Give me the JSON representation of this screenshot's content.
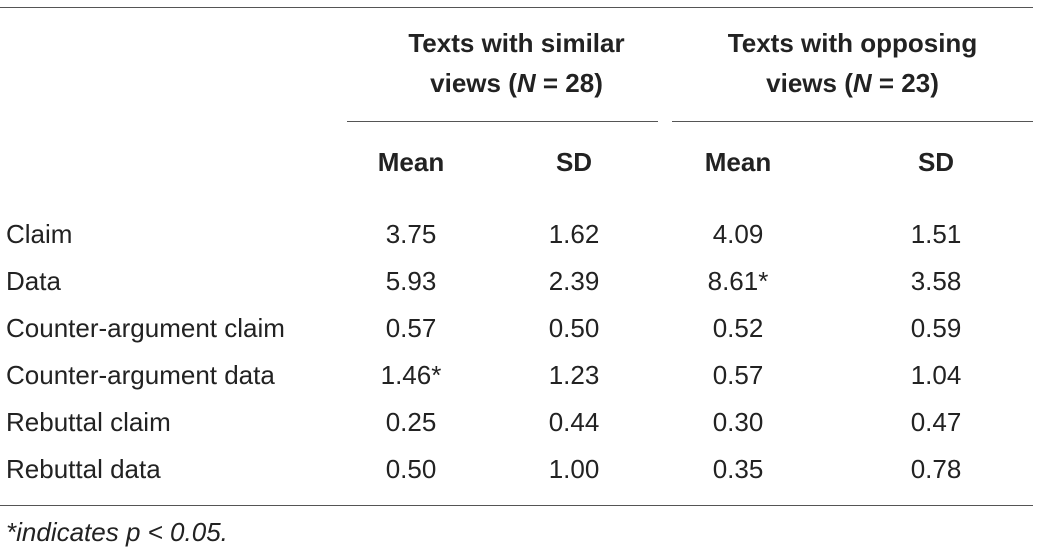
{
  "groups": [
    {
      "title_line1": "Texts with similar",
      "title_line2_prefix": "views (",
      "n_symbol": "N",
      "n_rest": " = 28)"
    },
    {
      "title_line1": "Texts with opposing",
      "title_line2_prefix": "views (",
      "n_symbol": "N",
      "n_rest": " = 23)"
    }
  ],
  "subheaders": [
    "Mean",
    "SD",
    "Mean",
    "SD"
  ],
  "rows": [
    {
      "label": "Claim",
      "values": [
        "3.75",
        "1.62",
        "4.09",
        "1.51"
      ]
    },
    {
      "label": "Data",
      "values": [
        "5.93",
        "2.39",
        "8.61*",
        "3.58"
      ]
    },
    {
      "label": "Counter-argument claim",
      "values": [
        "0.57",
        "0.50",
        "0.52",
        "0.59"
      ]
    },
    {
      "label": "Counter-argument data",
      "values": [
        "1.46*",
        "1.23",
        "0.57",
        "1.04"
      ]
    },
    {
      "label": "Rebuttal claim",
      "values": [
        "0.25",
        "0.44",
        "0.30",
        "0.47"
      ]
    },
    {
      "label": "Rebuttal data",
      "values": [
        "0.50",
        "1.00",
        "0.35",
        "0.78"
      ]
    }
  ],
  "footnote": "*indicates p < 0.05."
}
